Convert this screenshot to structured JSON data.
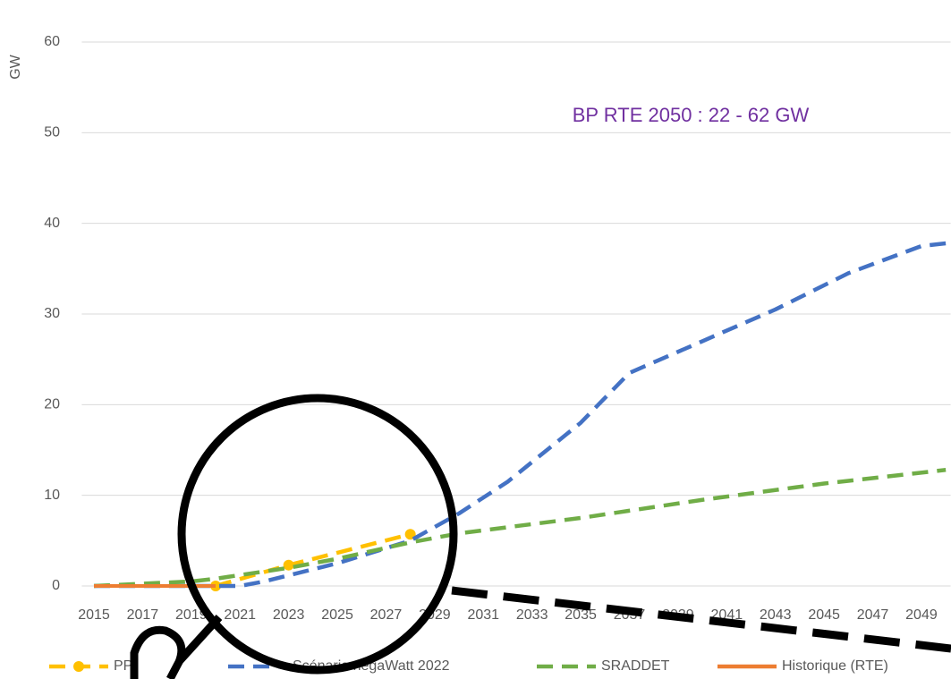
{
  "chart_data": {
    "type": "line",
    "y_label": "GW",
    "annotation": "BP RTE 2050 : 22 - 62 GW",
    "xlim": [
      2014.5,
      2050.2
    ],
    "xticks": [
      2015,
      2017,
      2019,
      2021,
      2023,
      2025,
      2027,
      2029,
      2031,
      2033,
      2035,
      2037,
      2039,
      2041,
      2043,
      2045,
      2047,
      2049
    ],
    "ylim": [
      0,
      60
    ],
    "yticks": [
      0,
      10,
      20,
      30,
      40,
      50,
      60
    ],
    "grid": true,
    "series": [
      {
        "name": "PPE 2028",
        "color": "#ffc000",
        "markers": true,
        "x": [
          2020,
          2023,
          2028
        ],
        "values": [
          0,
          2.3,
          5.7
        ]
      },
      {
        "name": "Scénario négaWatt 2022",
        "color": "#4472c4",
        "x": [
          2015,
          2020,
          2021,
          2022,
          2025,
          2028,
          2030,
          2032,
          2035,
          2037,
          2040,
          2043,
          2046,
          2049,
          2050
        ],
        "values": [
          0,
          0,
          0,
          0.5,
          2.5,
          5,
          8,
          11.5,
          18,
          23.5,
          27,
          30.5,
          34.5,
          37.5,
          37.8
        ]
      },
      {
        "name": "SRADDET",
        "color": "#70ad47",
        "x": [
          2015,
          2019,
          2020,
          2023,
          2025,
          2028,
          2030,
          2035,
          2040,
          2045,
          2050
        ],
        "values": [
          0,
          0.5,
          0.8,
          2,
          3,
          4.8,
          5.8,
          7.5,
          9.5,
          11.3,
          12.8
        ]
      },
      {
        "name": "Historique (RTE)",
        "color": "#ed7d31",
        "solid": true,
        "x": [
          2015,
          2016,
          2017,
          2018,
          2019,
          2020
        ],
        "values": [
          0,
          0,
          0,
          0,
          0,
          0
        ]
      }
    ]
  }
}
